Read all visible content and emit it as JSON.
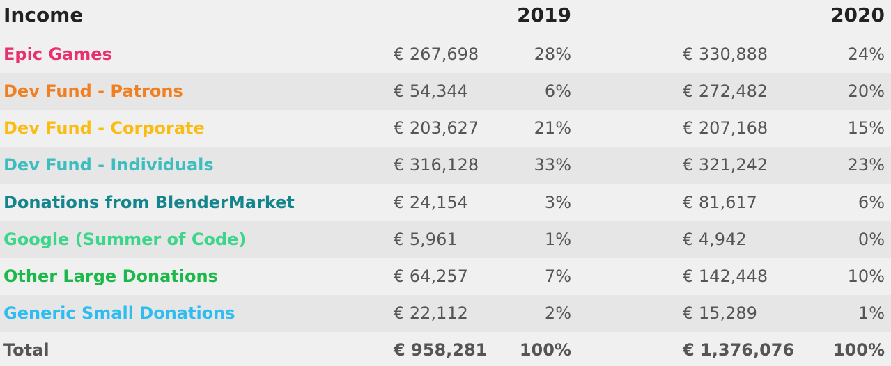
{
  "header": {
    "title": "Income",
    "year_a": "2019",
    "year_b": "2020"
  },
  "rows": [
    {
      "label": "Epic Games",
      "color": "#e8306e",
      "amt_2019": "€ 267,698",
      "pct_2019": "28%",
      "amt_2020": "€ 330,888",
      "pct_2020": "24%"
    },
    {
      "label": "Dev Fund - Patrons",
      "color": "#f07f22",
      "amt_2019": "€ 54,344",
      "pct_2019": "6%",
      "amt_2020": "€ 272,482",
      "pct_2020": "20%"
    },
    {
      "label": "Dev Fund - Corporate",
      "color": "#fbbc12",
      "amt_2019": "€ 203,627",
      "pct_2019": "21%",
      "amt_2020": "€ 207,168",
      "pct_2020": "15%"
    },
    {
      "label": "Dev Fund - Individuals",
      "color": "#3dbdbd",
      "amt_2019": "€ 316,128",
      "pct_2019": "33%",
      "amt_2020": "€ 321,242",
      "pct_2020": "23%"
    },
    {
      "label": "Donations from BlenderMarket",
      "color": "#14858c",
      "amt_2019": "€ 24,154",
      "pct_2019": "3%",
      "amt_2020": "€ 81,617",
      "pct_2020": "6%"
    },
    {
      "label": "Google (Summer of Code)",
      "color": "#3bd68a",
      "amt_2019": "€ 5,961",
      "pct_2019": "1%",
      "amt_2020": "€ 4,942",
      "pct_2020": "0%"
    },
    {
      "label": "Other Large Donations",
      "color": "#1db84a",
      "amt_2019": "€ 64,257",
      "pct_2019": "7%",
      "amt_2020": "€ 142,448",
      "pct_2020": "10%"
    },
    {
      "label": "Generic Small Donations",
      "color": "#2fbcf0",
      "amt_2019": "€ 22,112",
      "pct_2019": "2%",
      "amt_2020": "€ 15,289",
      "pct_2020": "1%"
    }
  ],
  "total": {
    "label": "Total",
    "amt_2019": "€ 958,281",
    "pct_2019": "100%",
    "amt_2020": "€ 1,376,076",
    "pct_2020": "100%"
  }
}
